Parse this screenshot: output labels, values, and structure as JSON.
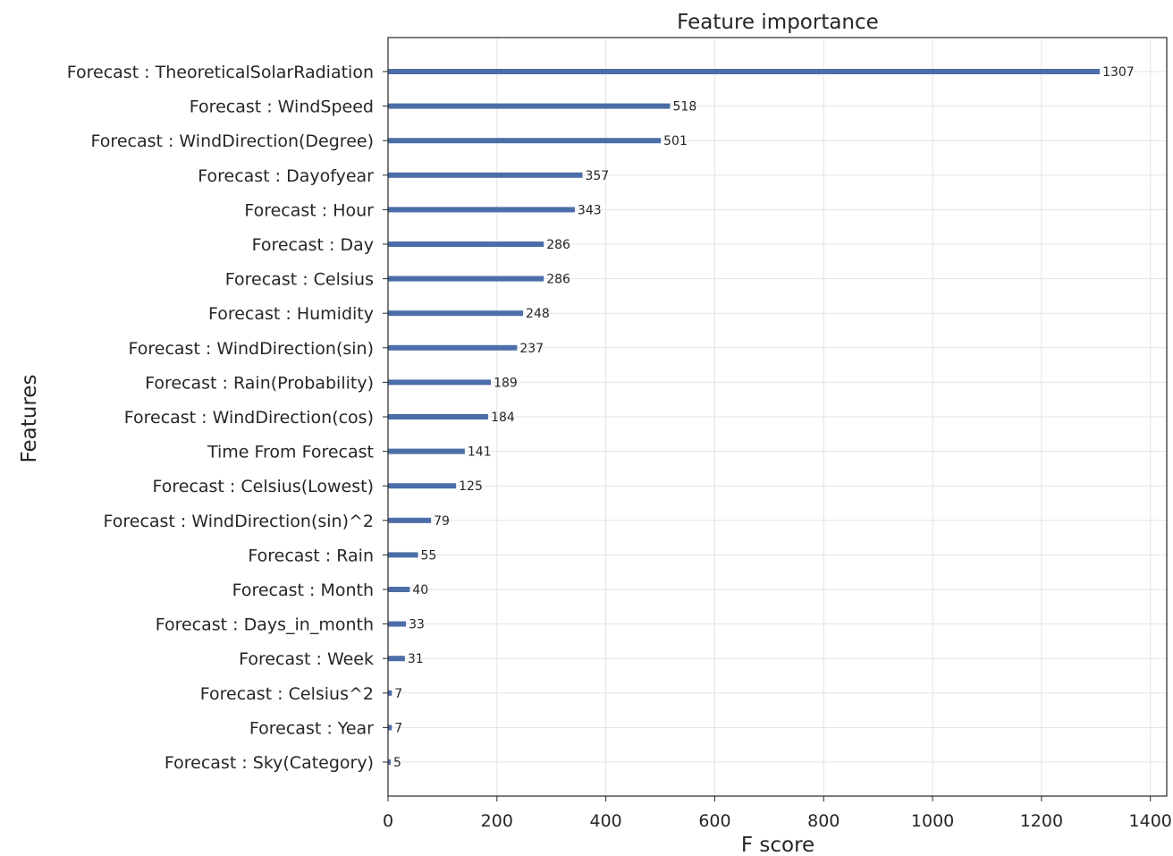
{
  "chart_data": {
    "type": "bar",
    "orientation": "horizontal",
    "title": "Feature importance",
    "xlabel": "F score",
    "ylabel": "Features",
    "xlim": [
      0,
      1430
    ],
    "xticks": [
      0,
      200,
      400,
      600,
      800,
      1000,
      1200,
      1400
    ],
    "grid": true,
    "bar_color": "#4c6ea8",
    "categories": [
      "Forecast : TheoreticalSolarRadiation",
      "Forecast : WindSpeed",
      "Forecast : WindDirection(Degree)",
      "Forecast : Dayofyear",
      "Forecast : Hour",
      "Forecast : Day",
      "Forecast : Celsius",
      "Forecast : Humidity",
      "Forecast : WindDirection(sin)",
      "Forecast : Rain(Probability)",
      "Forecast : WindDirection(cos)",
      "Time From Forecast",
      "Forecast : Celsius(Lowest)",
      "Forecast : WindDirection(sin)^2",
      "Forecast : Rain",
      "Forecast : Month",
      "Forecast : Days_in_month",
      "Forecast : Week",
      "Forecast : Celsius^2",
      "Forecast : Year",
      "Forecast : Sky(Category)"
    ],
    "values": [
      1307,
      518,
      501,
      357,
      343,
      286,
      286,
      248,
      237,
      189,
      184,
      141,
      125,
      79,
      55,
      40,
      33,
      31,
      7,
      7,
      5
    ]
  }
}
